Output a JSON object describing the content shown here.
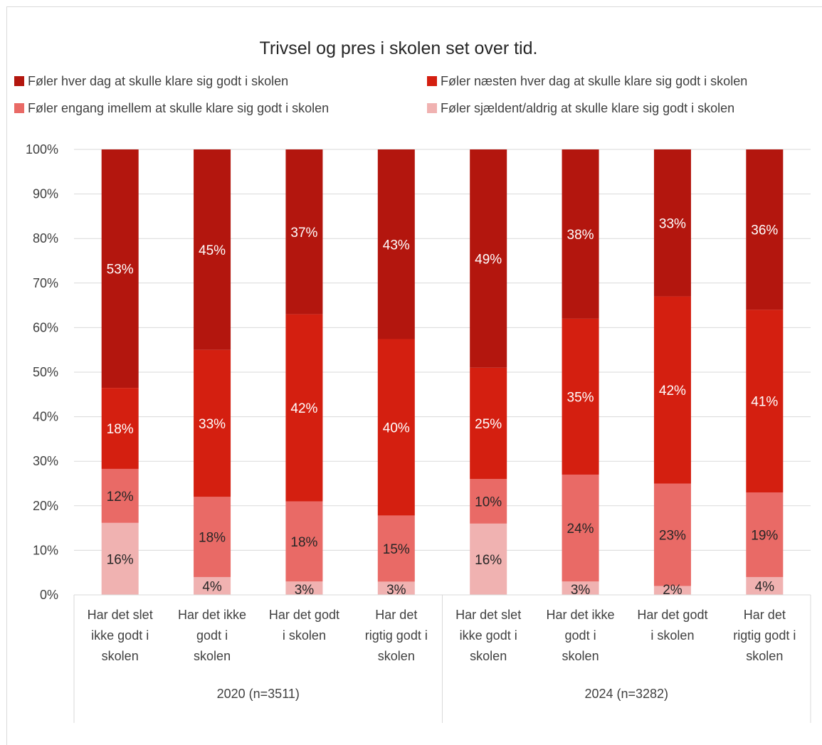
{
  "chart_data": {
    "type": "bar",
    "stacked": true,
    "percent_stacked": true,
    "title": "Trivsel og pres i skolen set over tid.",
    "colors": [
      "#b3160e",
      "#d41f10",
      "#e96a66",
      "#f0b2b1"
    ],
    "series": [
      {
        "name": "Føler hver dag at skulle klare sig godt i skolen",
        "values": [
          53,
          45,
          37,
          43,
          49,
          38,
          33,
          36
        ]
      },
      {
        "name": "Føler næsten hver dag at skulle klare sig godt i skolen",
        "values": [
          18,
          33,
          42,
          40,
          25,
          35,
          42,
          41
        ]
      },
      {
        "name": "Føler engang imellem at skulle klare sig godt i skolen",
        "values": [
          12,
          18,
          18,
          15,
          10,
          24,
          23,
          19
        ]
      },
      {
        "name": "Føler sjældent/aldrig at skulle klare sig godt i skolen",
        "values": [
          16,
          4,
          3,
          3,
          16,
          3,
          2,
          4
        ]
      }
    ],
    "categories": [
      [
        "Har det slet",
        "ikke godt i",
        "skolen"
      ],
      [
        "Har det ikke",
        "godt i",
        "skolen"
      ],
      [
        "Har det godt",
        "i skolen"
      ],
      [
        "Har det",
        "rigtig godt i",
        "skolen"
      ],
      [
        "Har det slet",
        "ikke godt i",
        "skolen"
      ],
      [
        "Har det ikke",
        "godt i",
        "skolen"
      ],
      [
        "Har det godt",
        "i skolen"
      ],
      [
        "Har det",
        "rigtig godt i",
        "skolen"
      ]
    ],
    "groups": [
      {
        "label": "2020 (n=3511)",
        "count": 4
      },
      {
        "label": "2024 (n=3282)",
        "count": 4
      }
    ],
    "yticks": [
      "0%",
      "10%",
      "20%",
      "30%",
      "40%",
      "50%",
      "60%",
      "70%",
      "80%",
      "90%",
      "100%"
    ],
    "ylim": [
      0,
      100
    ],
    "grid": true,
    "legend_position": "top"
  }
}
